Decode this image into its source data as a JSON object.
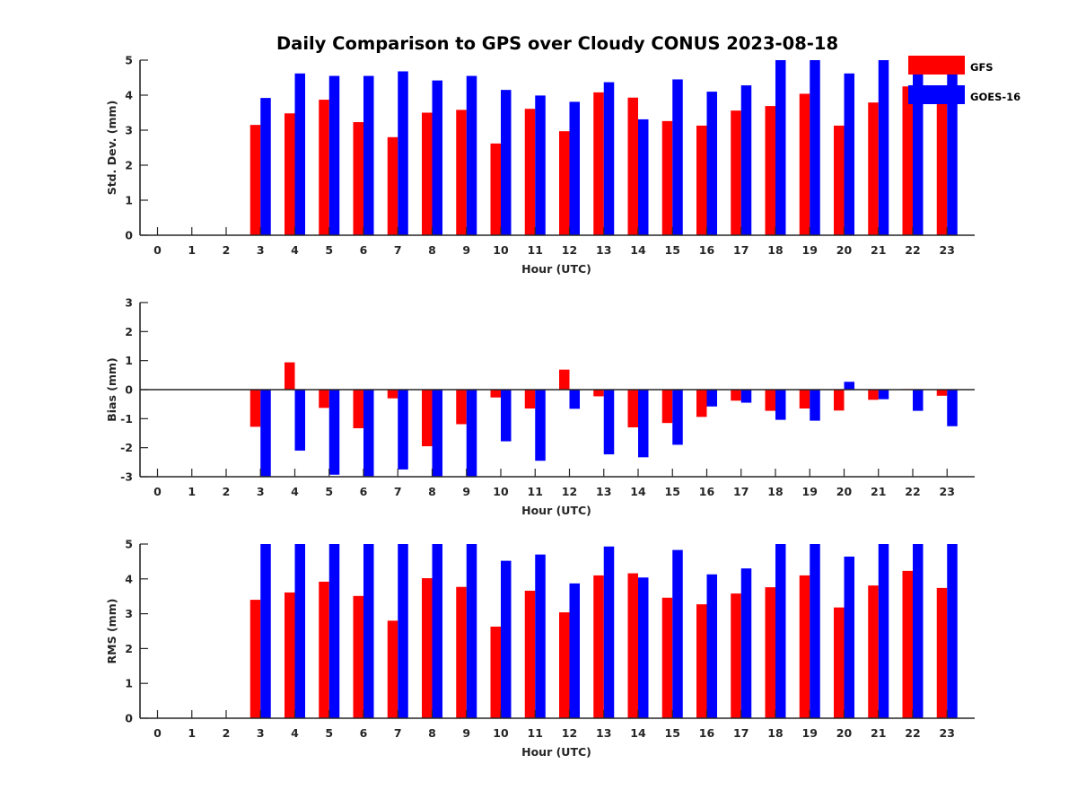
{
  "figure_title": "Daily Comparison to GPS over Cloudy CONUS 2023-08-18",
  "legend": {
    "entries": [
      {
        "name": "GFS",
        "color": "#ff0000"
      },
      {
        "name": "GOES-16",
        "color": "#0000ff"
      }
    ]
  },
  "chart_data": [
    {
      "type": "bar",
      "xlabel": "Hour (UTC)",
      "ylabel": "Std. Dev. (mm)",
      "ylim": [
        0,
        5
      ],
      "yticks": [
        0,
        1,
        2,
        3,
        4,
        5
      ],
      "categories": [
        "0",
        "1",
        "2",
        "3",
        "4",
        "5",
        "6",
        "7",
        "8",
        "9",
        "10",
        "11",
        "12",
        "13",
        "14",
        "15",
        "16",
        "17",
        "18",
        "19",
        "20",
        "21",
        "22",
        "23"
      ],
      "series": [
        {
          "name": "GFS",
          "color": "#ff0000",
          "values": [
            null,
            null,
            null,
            3.15,
            3.48,
            3.87,
            3.23,
            2.8,
            3.5,
            3.58,
            2.62,
            3.61,
            2.97,
            4.08,
            3.93,
            3.26,
            3.13,
            3.56,
            3.69,
            4.04,
            3.13,
            3.79,
            4.25,
            3.95
          ]
        },
        {
          "name": "GOES-16",
          "color": "#0000ff",
          "values": [
            null,
            null,
            null,
            3.92,
            4.62,
            4.55,
            4.55,
            4.68,
            4.42,
            4.55,
            4.15,
            3.99,
            3.81,
            4.37,
            3.31,
            4.45,
            4.1,
            4.28,
            5.0,
            5.0,
            4.62,
            5.0,
            5.0,
            4.7
          ]
        }
      ]
    },
    {
      "type": "bar",
      "xlabel": "Hour (UTC)",
      "ylabel": "Bias (mm)",
      "ylim": [
        -3,
        3
      ],
      "yticks": [
        -3,
        -2,
        -1,
        0,
        1,
        2,
        3
      ],
      "categories": [
        "0",
        "1",
        "2",
        "3",
        "4",
        "5",
        "6",
        "7",
        "8",
        "9",
        "10",
        "11",
        "12",
        "13",
        "14",
        "15",
        "16",
        "17",
        "18",
        "19",
        "20",
        "21",
        "22",
        "23"
      ],
      "series": [
        {
          "name": "GFS",
          "color": "#ff0000",
          "values": [
            null,
            null,
            null,
            -1.28,
            0.94,
            -0.63,
            -1.33,
            -0.3,
            -1.95,
            -1.19,
            -0.27,
            -0.65,
            0.69,
            -0.23,
            -1.3,
            -1.15,
            -0.94,
            -0.38,
            -0.73,
            -0.65,
            -0.72,
            -0.35,
            0.02,
            -0.21
          ]
        },
        {
          "name": "GOES-16",
          "color": "#0000ff",
          "values": [
            null,
            null,
            null,
            -3.0,
            -2.1,
            -2.93,
            -3.0,
            -2.75,
            -3.0,
            -3.0,
            -1.78,
            -2.45,
            -0.66,
            -2.23,
            -2.33,
            -1.9,
            -0.58,
            -0.45,
            -1.04,
            -1.07,
            0.27,
            -0.33,
            -0.73,
            -1.26
          ]
        }
      ]
    },
    {
      "type": "bar",
      "xlabel": "Hour (UTC)",
      "ylabel": "RMS (mm)",
      "ylim": [
        0,
        5
      ],
      "yticks": [
        0,
        1,
        2,
        3,
        4,
        5
      ],
      "categories": [
        "0",
        "1",
        "2",
        "3",
        "4",
        "5",
        "6",
        "7",
        "8",
        "9",
        "10",
        "11",
        "12",
        "13",
        "14",
        "15",
        "16",
        "17",
        "18",
        "19",
        "20",
        "21",
        "22",
        "23"
      ],
      "series": [
        {
          "name": "GFS",
          "color": "#ff0000",
          "values": [
            null,
            null,
            null,
            3.4,
            3.61,
            3.92,
            3.51,
            2.8,
            4.02,
            3.77,
            2.63,
            3.66,
            3.04,
            4.1,
            4.16,
            3.46,
            3.27,
            3.58,
            3.76,
            4.1,
            3.18,
            3.81,
            4.23,
            3.74
          ]
        },
        {
          "name": "GOES-16",
          "color": "#0000ff",
          "values": [
            null,
            null,
            null,
            5.0,
            5.0,
            5.0,
            5.0,
            5.0,
            5.0,
            5.0,
            4.52,
            4.7,
            3.87,
            4.93,
            4.04,
            4.83,
            4.13,
            4.3,
            5.0,
            5.0,
            4.64,
            5.0,
            5.0,
            5.0
          ]
        }
      ]
    }
  ]
}
